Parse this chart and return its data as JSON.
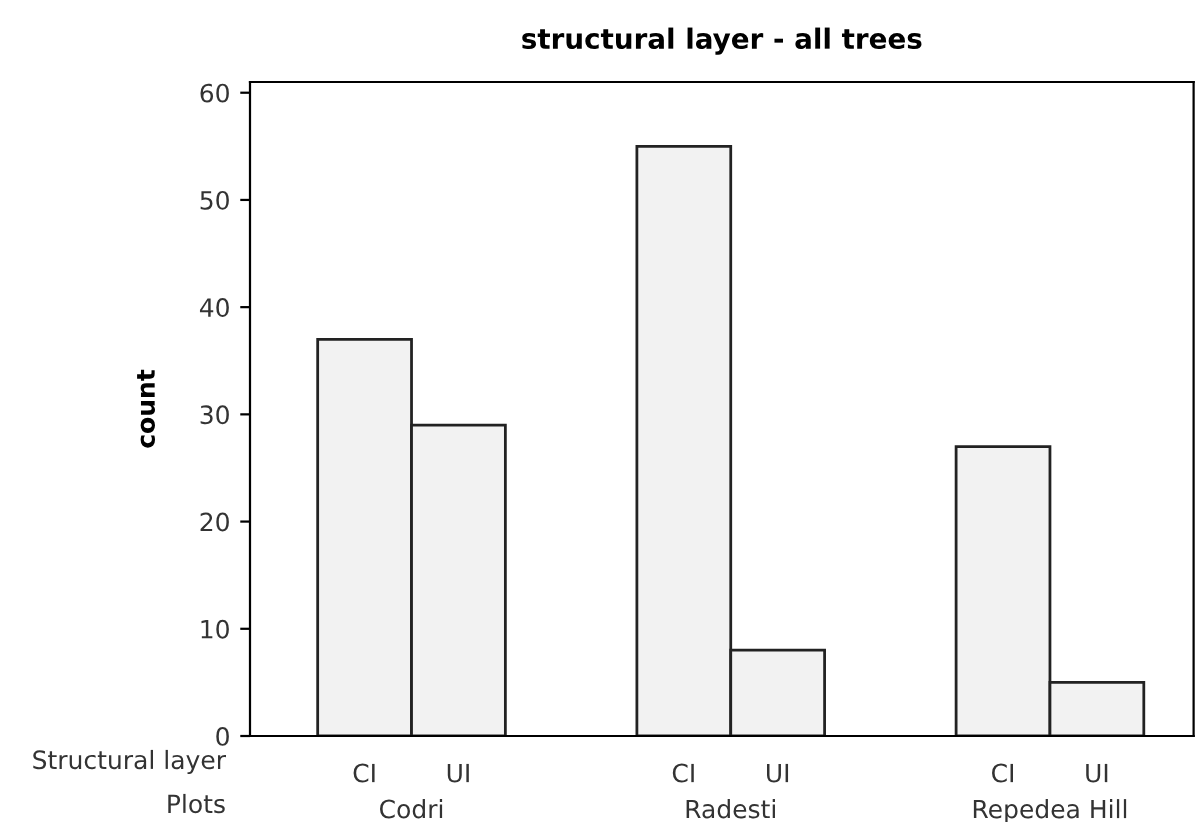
{
  "chart_data": {
    "type": "bar",
    "title": "structural layer - all trees",
    "ylabel": "count",
    "categories": [
      "Codri",
      "Radesti",
      "Repedea Hill"
    ],
    "series": [
      {
        "name": "CI",
        "color": "#f2f2f2",
        "values": [
          37,
          55,
          27
        ]
      },
      {
        "name": "UI",
        "color": "#f2f2f2",
        "values": [
          29,
          8,
          5
        ]
      }
    ],
    "ylim": [
      0,
      61
    ],
    "yticks": [
      0,
      10,
      20,
      30,
      40,
      50,
      60
    ],
    "grid": false,
    "legend": false,
    "annotations": [
      "Structural layer",
      "Plots"
    ]
  }
}
